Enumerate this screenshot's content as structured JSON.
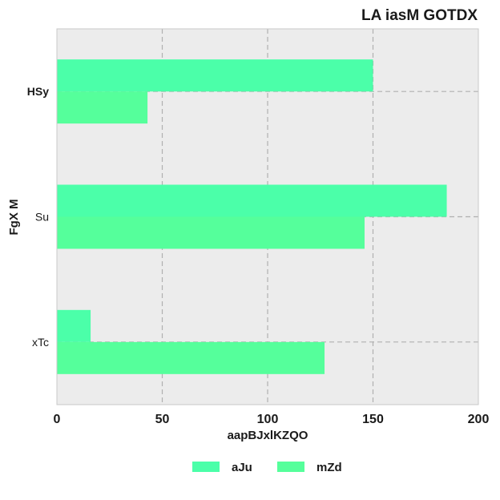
{
  "chart_data": {
    "type": "bar",
    "orientation": "horizontal",
    "title": "LA iasM GOTDX",
    "xlabel": "aapBJxlKZQO",
    "ylabel": "FgX M",
    "categories": [
      "HSy",
      "Su",
      "xTc"
    ],
    "series": [
      {
        "name": "aJu",
        "values": [
          150,
          185,
          16
        ],
        "color": "#4bffa9"
      },
      {
        "name": "mZd",
        "values": [
          43,
          146,
          127
        ],
        "color": "#55ff9b"
      }
    ],
    "xlim": [
      0,
      200
    ],
    "xticks": [
      0,
      50,
      100,
      150,
      200
    ],
    "grid": true,
    "legend_position": "bottom-center",
    "colors": {
      "plot_background": "#ececec",
      "grid": "#b0b0b0",
      "axis_border": "#c8c8c8"
    }
  }
}
